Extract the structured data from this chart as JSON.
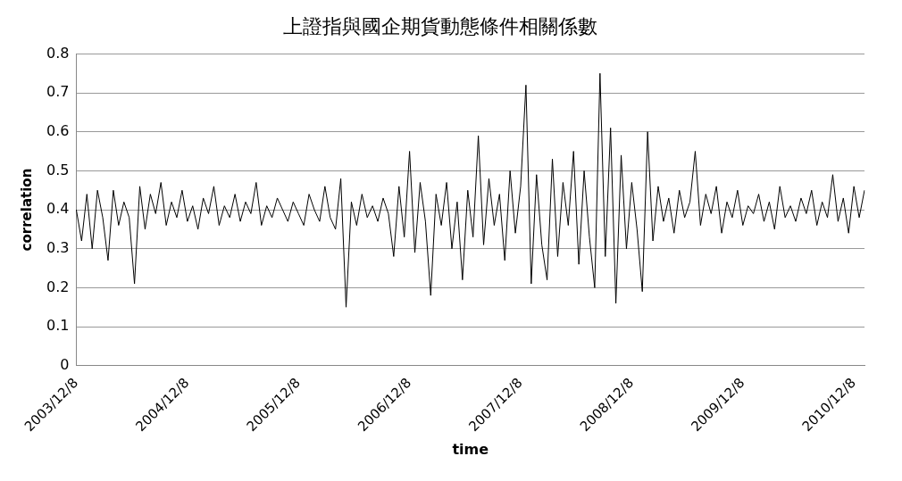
{
  "chart_data": {
    "type": "line",
    "title": "上證指與國企期貨動態條件相關係數",
    "xlabel": "time",
    "ylabel": "correlation",
    "categories": [
      "2003/12/8",
      null,
      null,
      null,
      null,
      null,
      null,
      null,
      null,
      null,
      null,
      null,
      null,
      null,
      null,
      null,
      null,
      null,
      null,
      null,
      null,
      "2004/12/8",
      null,
      null,
      null,
      null,
      null,
      null,
      null,
      null,
      null,
      null,
      null,
      null,
      null,
      null,
      null,
      null,
      null,
      null,
      null,
      null,
      "2005/12/8",
      null,
      null,
      null,
      null,
      null,
      null,
      null,
      null,
      null,
      null,
      null,
      null,
      null,
      null,
      null,
      null,
      null,
      null,
      null,
      null,
      "2006/12/8",
      null,
      null,
      null,
      null,
      null,
      null,
      null,
      null,
      null,
      null,
      null,
      null,
      null,
      null,
      null,
      null,
      null,
      null,
      null,
      null,
      "2007/12/8",
      null,
      null,
      null,
      null,
      null,
      null,
      null,
      null,
      null,
      null,
      null,
      null,
      null,
      null,
      null,
      null,
      null,
      null,
      null,
      null,
      "2008/12/8",
      null,
      null,
      null,
      null,
      null,
      null,
      null,
      null,
      null,
      null,
      null,
      null,
      null,
      null,
      null,
      null,
      null,
      null,
      null,
      null,
      "2009/12/8",
      null,
      null,
      null,
      null,
      null,
      null,
      null,
      null,
      null,
      null,
      null,
      null,
      null,
      null,
      null,
      null,
      null,
      null,
      null,
      null,
      "2010/12/8",
      null,
      null
    ],
    "series": [
      {
        "color": "#000000",
        "values": [
          0.4,
          0.32,
          0.44,
          0.3,
          0.45,
          0.38,
          0.27,
          0.45,
          0.36,
          0.42,
          0.38,
          0.21,
          0.46,
          0.35,
          0.44,
          0.39,
          0.47,
          0.36,
          0.42,
          0.38,
          0.45,
          0.37,
          0.41,
          0.35,
          0.43,
          0.39,
          0.46,
          0.36,
          0.41,
          0.38,
          0.44,
          0.37,
          0.42,
          0.39,
          0.47,
          0.36,
          0.41,
          0.38,
          0.43,
          0.4,
          0.37,
          0.42,
          0.39,
          0.36,
          0.44,
          0.4,
          0.37,
          0.46,
          0.38,
          0.35,
          0.48,
          0.15,
          0.42,
          0.36,
          0.44,
          0.38,
          0.41,
          0.37,
          0.43,
          0.39,
          0.28,
          0.46,
          0.33,
          0.55,
          0.29,
          0.47,
          0.37,
          0.18,
          0.44,
          0.36,
          0.47,
          0.3,
          0.42,
          0.22,
          0.45,
          0.33,
          0.59,
          0.31,
          0.48,
          0.36,
          0.44,
          0.27,
          0.5,
          0.34,
          0.46,
          0.72,
          0.21,
          0.49,
          0.31,
          0.22,
          0.53,
          0.28,
          0.47,
          0.36,
          0.55,
          0.26,
          0.5,
          0.33,
          0.2,
          0.75,
          0.28,
          0.61,
          0.16,
          0.54,
          0.3,
          0.47,
          0.35,
          0.19,
          0.6,
          0.32,
          0.46,
          0.37,
          0.43,
          0.34,
          0.45,
          0.38,
          0.42,
          0.55,
          0.36,
          0.44,
          0.39,
          0.46,
          0.34,
          0.42,
          0.38,
          0.45,
          0.36,
          0.41,
          0.39,
          0.44,
          0.37,
          0.42,
          0.35,
          0.46,
          0.38,
          0.41,
          0.37,
          0.43,
          0.39,
          0.45,
          0.36,
          0.42,
          0.38,
          0.49,
          0.37,
          0.43,
          0.34,
          0.46,
          0.38,
          0.45
        ]
      }
    ],
    "ylim": [
      0,
      0.8
    ],
    "yticks": [
      0,
      0.1,
      0.2,
      0.3,
      0.4,
      0.5,
      0.6,
      0.7,
      0.8
    ],
    "grid": "y"
  }
}
